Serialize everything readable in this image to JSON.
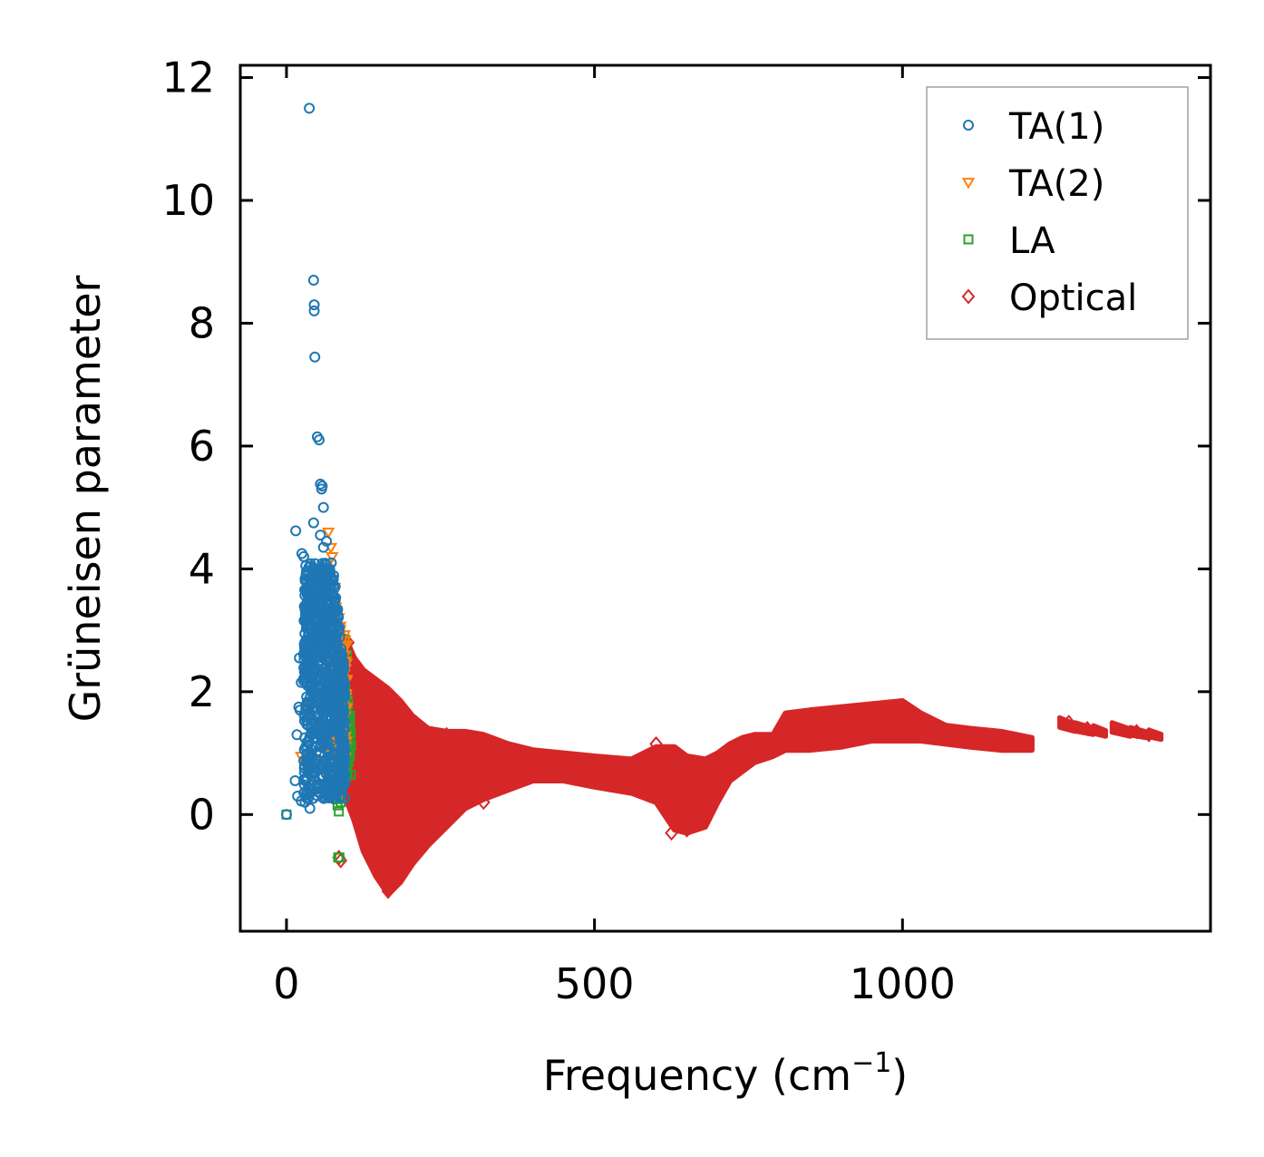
{
  "chart_data": {
    "type": "scatter",
    "title": "",
    "xlabel": "Frequency (cm",
    "xlabel_sup": "−1",
    "xlabel_close": ")",
    "ylabel": "Grüneisen parameter",
    "xlim": [
      -75,
      1500
    ],
    "ylim": [
      -1.9,
      12.2
    ],
    "xticks": [
      0,
      500,
      1000
    ],
    "xtick_labels": [
      "0",
      "500",
      "1000"
    ],
    "yticks": [
      0,
      2,
      4,
      6,
      8,
      10,
      12
    ],
    "ytick_labels": [
      "0",
      "2",
      "4",
      "6",
      "8",
      "10",
      "12"
    ],
    "legend_position": "top-right",
    "series": [
      {
        "name": "TA(1)",
        "marker": "circle",
        "color": "#1f77b4",
        "points": [
          [
            37,
            11.5
          ],
          [
            44,
            8.7
          ],
          [
            45,
            8.3
          ],
          [
            45,
            8.2
          ],
          [
            46,
            7.45
          ],
          [
            50,
            6.15
          ],
          [
            53,
            6.1
          ],
          [
            55,
            5.38
          ],
          [
            58,
            5.35
          ],
          [
            57,
            5.3
          ],
          [
            60,
            5.0
          ],
          [
            44,
            4.75
          ],
          [
            15,
            4.62
          ],
          [
            55,
            4.55
          ],
          [
            65,
            4.45
          ],
          [
            60,
            4.35
          ],
          [
            25,
            4.25
          ],
          [
            28,
            4.2
          ],
          [
            32,
            3.88
          ],
          [
            38,
            3.55
          ],
          [
            40,
            3.4
          ],
          [
            21,
            2.55
          ],
          [
            28,
            2.6
          ],
          [
            24,
            2.15
          ],
          [
            20,
            1.75
          ],
          [
            22,
            1.7
          ],
          [
            17,
            1.3
          ],
          [
            14,
            0.55
          ],
          [
            18,
            0.3
          ],
          [
            24,
            0.22
          ],
          [
            30,
            0.2
          ],
          [
            38,
            0.1
          ],
          [
            0,
            0.0
          ]
        ],
        "dense_band": {
          "x": [
            28,
            95
          ],
          "y_low": 0.25,
          "y_high": 4.1
        }
      },
      {
        "name": "TA(2)",
        "marker": "triangle-down",
        "color": "#ff7f0e",
        "points": [
          [
            68,
            4.6
          ],
          [
            72,
            4.35
          ],
          [
            74,
            4.2
          ],
          [
            70,
            4.0
          ],
          [
            78,
            3.7
          ],
          [
            24,
            0.95
          ],
          [
            80,
            1.6
          ],
          [
            90,
            1.4
          ],
          [
            95,
            1.1
          ],
          [
            85,
            2.9
          ],
          [
            88,
            2.6
          ],
          [
            78,
            3.2
          ],
          [
            92,
            2.0
          ]
        ],
        "dense_band": {
          "x": [
            62,
            98
          ],
          "y_low": 0.9,
          "y_high": 4.0
        }
      },
      {
        "name": "LA",
        "marker": "square",
        "color": "#2ca02c",
        "points": [
          [
            0,
            0.0
          ],
          [
            82,
            0.25
          ],
          [
            83,
            0.15
          ],
          [
            85,
            0.05
          ],
          [
            88,
            0.2
          ],
          [
            84,
            -0.7
          ],
          [
            86,
            -0.7
          ],
          [
            95,
            2.85
          ],
          [
            98,
            2.6
          ],
          [
            92,
            2.2
          ],
          [
            100,
            1.8
          ],
          [
            102,
            1.2
          ],
          [
            98,
            1.0
          ]
        ],
        "dense_band": {
          "x": [
            80,
            105
          ],
          "y_low": 0.6,
          "y_high": 2.8
        }
      },
      {
        "name": "Optical",
        "marker": "diamond",
        "color": "#d62728",
        "points": [
          [
            85,
            -0.7
          ],
          [
            88,
            -0.75
          ],
          [
            100,
            2.8
          ],
          [
            110,
            2.4
          ],
          [
            140,
            -0.5
          ],
          [
            165,
            -1.25
          ],
          [
            200,
            -0.8
          ],
          [
            210,
            1.5
          ],
          [
            260,
            1.3
          ],
          [
            320,
            0.2
          ],
          [
            600,
            1.15
          ],
          [
            625,
            -0.3
          ],
          [
            650,
            -0.25
          ],
          [
            1270,
            1.5
          ],
          [
            1300,
            1.4
          ],
          [
            1380,
            1.35
          ],
          [
            1400,
            1.3
          ]
        ],
        "envelope": [
          [
            95,
            0.3,
            2.9
          ],
          [
            110,
            -0.1,
            2.55
          ],
          [
            125,
            -0.6,
            2.35
          ],
          [
            145,
            -1.0,
            2.2
          ],
          [
            165,
            -1.3,
            2.05
          ],
          [
            185,
            -1.1,
            1.85
          ],
          [
            205,
            -0.8,
            1.6
          ],
          [
            230,
            -0.5,
            1.4
          ],
          [
            260,
            -0.2,
            1.35
          ],
          [
            290,
            0.1,
            1.35
          ],
          [
            320,
            0.25,
            1.3
          ],
          [
            360,
            0.4,
            1.15
          ],
          [
            400,
            0.55,
            1.05
          ],
          [
            450,
            0.55,
            1.0
          ],
          [
            500,
            0.45,
            0.95
          ],
          [
            560,
            0.35,
            0.9
          ],
          [
            600,
            0.2,
            1.1
          ],
          [
            630,
            -0.25,
            1.1
          ],
          [
            650,
            -0.3,
            0.95
          ],
          [
            680,
            -0.2,
            0.9
          ],
          [
            700,
            0.2,
            1.0
          ],
          [
            720,
            0.55,
            1.15
          ],
          [
            740,
            0.7,
            1.25
          ],
          [
            760,
            0.85,
            1.3
          ],
          [
            790,
            0.95,
            1.3
          ],
          [
            810,
            1.05,
            1.65
          ],
          [
            850,
            1.05,
            1.7
          ],
          [
            900,
            1.1,
            1.75
          ],
          [
            950,
            1.2,
            1.8
          ],
          [
            1000,
            1.2,
            1.85
          ],
          [
            1030,
            1.2,
            1.65
          ],
          [
            1070,
            1.15,
            1.45
          ],
          [
            1110,
            1.1,
            1.4
          ],
          [
            1160,
            1.05,
            1.35
          ],
          [
            1210,
            1.05,
            1.25
          ]
        ],
        "segments": [
          [
            1255,
            1280,
            1.33,
            1.58
          ],
          [
            1280,
            1310,
            1.28,
            1.5
          ],
          [
            1310,
            1330,
            1.25,
            1.45
          ],
          [
            1340,
            1370,
            1.25,
            1.5
          ],
          [
            1370,
            1400,
            1.22,
            1.42
          ],
          [
            1400,
            1420,
            1.2,
            1.38
          ]
        ]
      }
    ]
  }
}
